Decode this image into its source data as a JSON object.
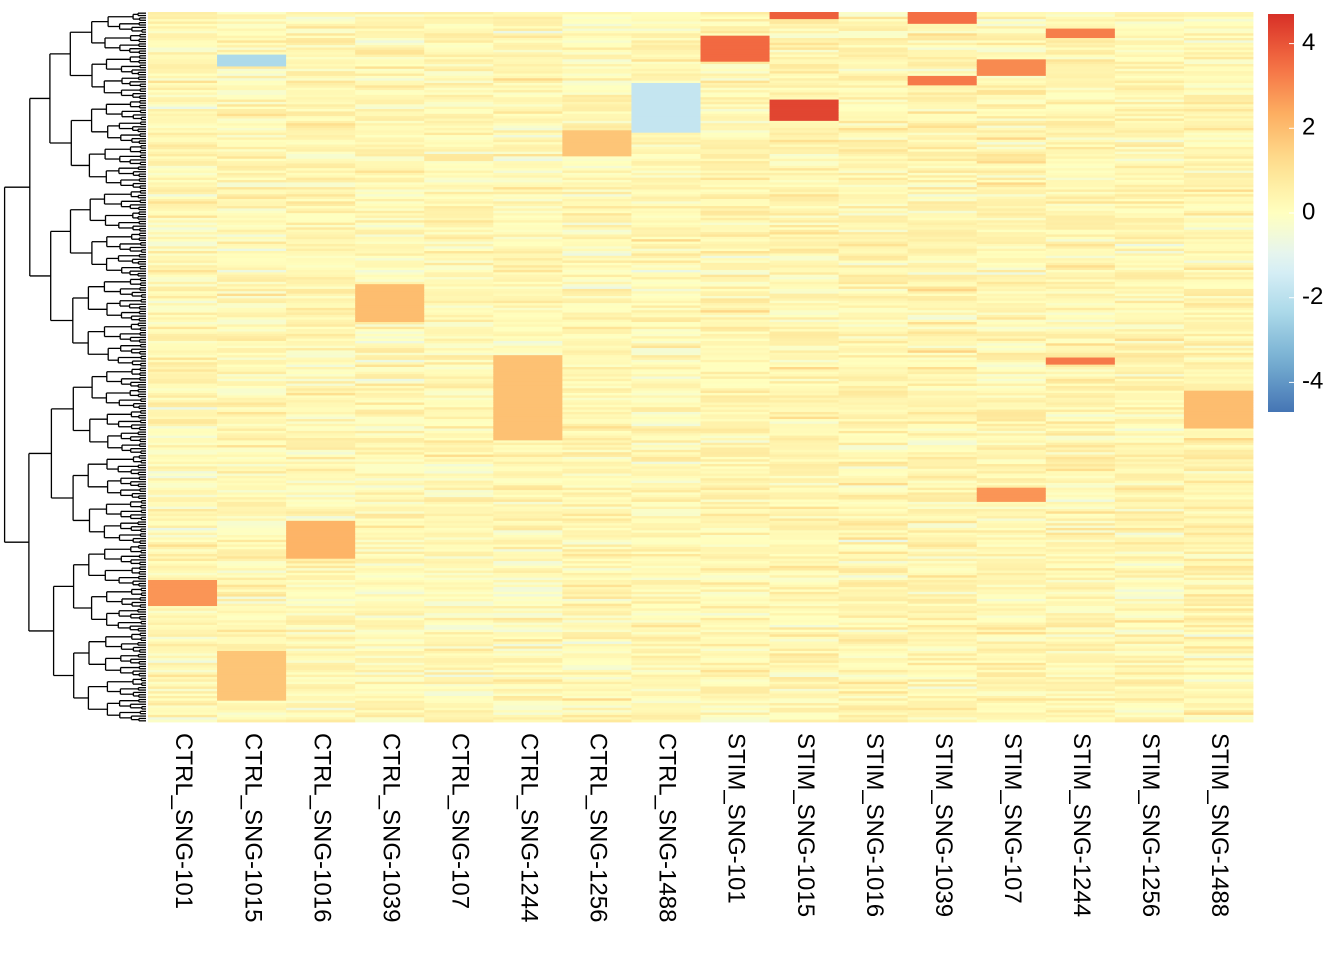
{
  "chart_data": {
    "type": "heatmap",
    "title": "",
    "xlabel": "",
    "ylabel": "",
    "columns": [
      "CTRL_SNG-101",
      "CTRL_SNG-1015",
      "CTRL_SNG-1016",
      "CTRL_SNG-1039",
      "CTRL_SNG-107",
      "CTRL_SNG-1244",
      "CTRL_SNG-1256",
      "CTRL_SNG-1488",
      "STIM_SNG-101",
      "STIM_SNG-1015",
      "STIM_SNG-1016",
      "STIM_SNG-1039",
      "STIM_SNG-107",
      "STIM_SNG-1244",
      "STIM_SNG-1256",
      "STIM_SNG-1488"
    ],
    "row_count": 300,
    "row_dendrogram": true,
    "row_labels_shown": false,
    "color_scale": {
      "min": -4.7,
      "max": 4.7,
      "low_color": "#4575b4",
      "mid_color": "#ffffbf",
      "high_color": "#d73027",
      "ticks": [
        4,
        2,
        0,
        -2,
        -4
      ],
      "tick_labels": [
        "4",
        "2",
        "0",
        "-2",
        "-4"
      ]
    },
    "notable_blocks": [
      {
        "column": "CTRL_SNG-101",
        "row_range": [
          240,
          250
        ],
        "approx_value": 2.8
      },
      {
        "column": "STIM_SNG-101",
        "row_range": [
          10,
          20
        ],
        "approx_value": 3.6
      },
      {
        "column": "STIM_SNG-1015",
        "row_range": [
          37,
          45
        ],
        "approx_value": 4.3
      },
      {
        "column": "STIM_SNG-1015",
        "row_range": [
          0,
          2
        ],
        "approx_value": 3.8
      },
      {
        "column": "STIM_SNG-1039",
        "row_range": [
          0,
          4
        ],
        "approx_value": 3.5
      },
      {
        "column": "STIM_SNG-1039",
        "row_range": [
          27,
          30
        ],
        "approx_value": 3.3
      },
      {
        "column": "STIM_SNG-107",
        "row_range": [
          201,
          206
        ],
        "approx_value": 2.8
      },
      {
        "column": "STIM_SNG-107",
        "row_range": [
          20,
          26
        ],
        "approx_value": 3.0
      },
      {
        "column": "STIM_SNG-1244",
        "row_range": [
          7,
          10
        ],
        "approx_value": 3.2
      },
      {
        "column": "STIM_SNG-1244",
        "row_range": [
          146,
          148
        ],
        "approx_value": 3.3
      },
      {
        "column": "CTRL_SNG-1039",
        "row_range": [
          115,
          130
        ],
        "approx_value": 2.0
      },
      {
        "column": "CTRL_SNG-1244",
        "row_range": [
          145,
          180
        ],
        "approx_value": 1.9
      },
      {
        "column": "CTRL_SNG-1016",
        "row_range": [
          215,
          230
        ],
        "approx_value": 2.2
      },
      {
        "column": "CTRL_SNG-1015",
        "row_range": [
          270,
          290
        ],
        "approx_value": 1.8
      },
      {
        "column": "CTRL_SNG-1256",
        "row_range": [
          50,
          60
        ],
        "approx_value": 1.8
      },
      {
        "column": "STIM_SNG-1488",
        "row_range": [
          160,
          175
        ],
        "approx_value": 2.0
      },
      {
        "column": "CTRL_SNG-1488",
        "row_range": [
          30,
          50
        ],
        "approx_value": -1.8
      },
      {
        "column": "CTRL_SNG-1015",
        "row_range": [
          18,
          22
        ],
        "approx_value": -2.3
      }
    ]
  }
}
